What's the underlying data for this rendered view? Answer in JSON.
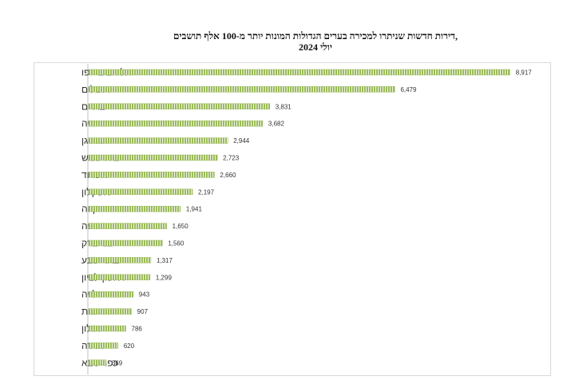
{
  "title": {
    "line1": "דירות חדשות שניתרו למכירה בערים הגדולות המונות יותר מ-100 אלף תושבים,",
    "line2": "יולי 2024"
  },
  "colors": {
    "bar_fill": "#9bbb59",
    "bar_stripe": "#ffffff",
    "frame": "#d9d9d9",
    "axis": "#bfbfbf"
  },
  "chart_data": {
    "type": "bar",
    "orientation": "horizontal",
    "title": "דירות חדשות שניתרו למכירה בערים הגדולות המונות יותר מ-100 אלף תושבים, יולי 2024",
    "xlabel": "",
    "ylabel": "",
    "xlim": [
      0,
      9800
    ],
    "grid": false,
    "legend": "none",
    "data_labels": true,
    "categories": [
      "תל אביב -יפו",
      "ירושלים",
      "בת ים",
      "נתניה",
      "רמת גן",
      "בית שמש",
      "אשדוד",
      "אשקלון",
      "פתח תקווה",
      "חיפה",
      "בני ברק",
      "באר שבע",
      "ראשון לציון",
      "הרצלייה",
      "רחובות",
      "חולון",
      "חדרה",
      "כפר סבא"
    ],
    "value_labels": [
      "8,917",
      "6,479",
      "3,831",
      "3,682",
      "2,944",
      "2,723",
      "2,660",
      "2,197",
      "1,941",
      "1,650",
      "1,560",
      "1,317",
      "1,299",
      "943",
      "907",
      "786",
      "620",
      "369"
    ],
    "values": [
      8917,
      6479,
      3831,
      3682,
      2944,
      2723,
      2660,
      2197,
      1941,
      1650,
      1560,
      1317,
      1299,
      943,
      907,
      786,
      620,
      369
    ]
  }
}
